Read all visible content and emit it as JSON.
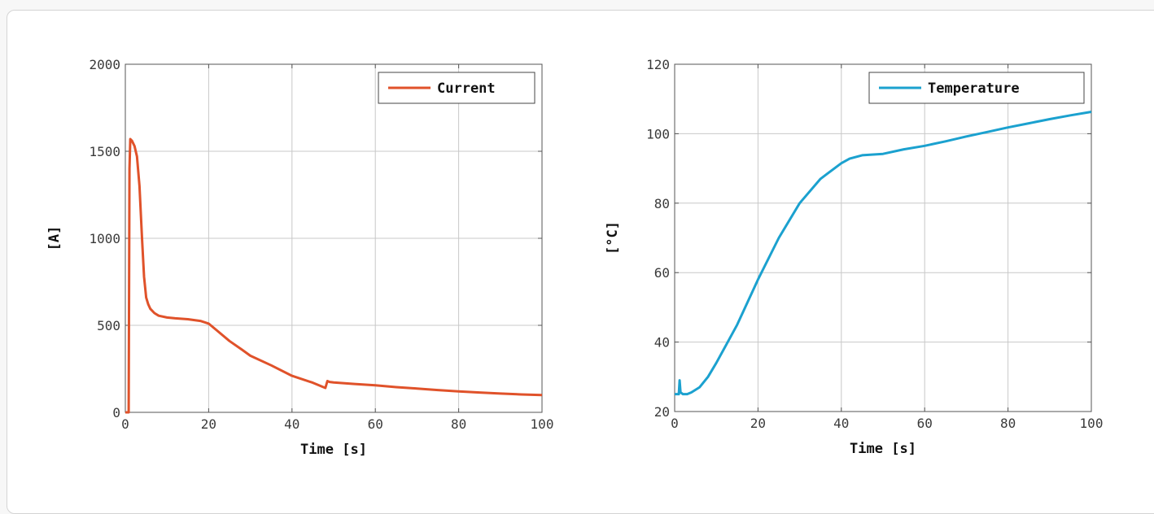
{
  "chart_data": [
    {
      "type": "line",
      "title": "",
      "xlabel": "Time [s]",
      "ylabel": "[A]",
      "xlim": [
        0,
        100
      ],
      "ylim": [
        0,
        2000
      ],
      "xticks": [
        0,
        20,
        40,
        60,
        80,
        100
      ],
      "yticks": [
        0,
        500,
        1000,
        1500,
        2000
      ],
      "grid": true,
      "legend_position": "top-right",
      "series": [
        {
          "name": "Current",
          "color": "#e0522a",
          "x": [
            0,
            0.8,
            1.0,
            1.2,
            1.6,
            2.2,
            2.8,
            3.4,
            4.0,
            4.5,
            5.0,
            5.5,
            6.0,
            7.0,
            8.0,
            10,
            12,
            15,
            18,
            20,
            22,
            25,
            28,
            30,
            35,
            40,
            45,
            48,
            48.5,
            49,
            50,
            55,
            60,
            65,
            70,
            75,
            80,
            85,
            90,
            95,
            100
          ],
          "y": [
            0,
            0,
            1400,
            1570,
            1560,
            1530,
            1470,
            1300,
            1000,
            780,
            660,
            620,
            595,
            570,
            555,
            545,
            540,
            535,
            525,
            510,
            470,
            410,
            360,
            325,
            270,
            210,
            170,
            140,
            180,
            175,
            172,
            163,
            155,
            145,
            137,
            128,
            120,
            114,
            108,
            103,
            99
          ]
        }
      ]
    },
    {
      "type": "line",
      "title": "",
      "xlabel": "Time [s]",
      "ylabel": "[°C]",
      "xlim": [
        0,
        100
      ],
      "ylim": [
        20,
        120
      ],
      "xticks": [
        0,
        20,
        40,
        60,
        80,
        100
      ],
      "yticks": [
        20,
        40,
        60,
        80,
        100,
        120
      ],
      "grid": true,
      "legend_position": "top-right",
      "series": [
        {
          "name": "Temperature",
          "color": "#1ba1cf",
          "x": [
            0,
            1,
            1.2,
            1.4,
            2,
            3,
            4,
            6,
            8,
            10,
            15,
            20,
            25,
            30,
            35,
            40,
            42,
            45,
            50,
            55,
            60,
            65,
            70,
            75,
            80,
            85,
            90,
            95,
            100
          ],
          "y": [
            25,
            25,
            29,
            25.5,
            25,
            25,
            25.5,
            27,
            30,
            34,
            45,
            58,
            70,
            80,
            87,
            91.5,
            92.8,
            93.8,
            94.2,
            95.5,
            96.5,
            97.8,
            99.2,
            100.5,
            101.8,
            103,
            104.2,
            105.3,
            106.3
          ]
        }
      ]
    }
  ]
}
